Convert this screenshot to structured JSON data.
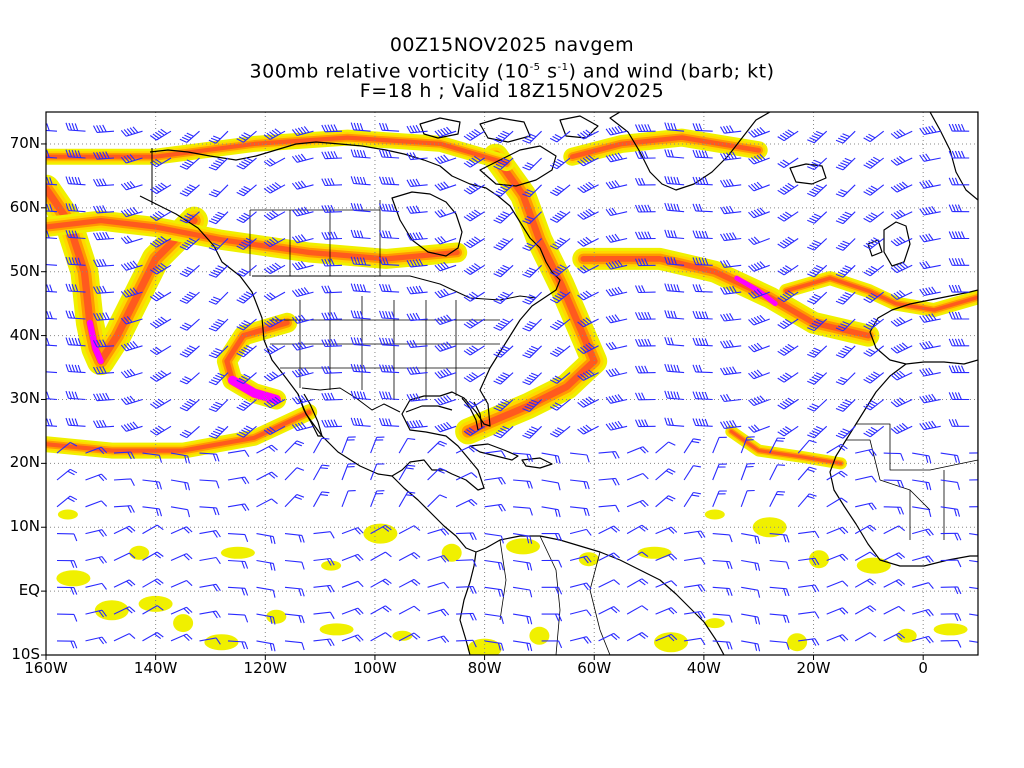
{
  "header": {
    "line1": "00Z15NOV2025 navgem",
    "line2_pre": "300mb relative vorticity (10",
    "line2_exp1": "-5",
    "line2_mid": " s",
    "line2_exp2": "-1",
    "line2_post": ") and wind (barb; kt)",
    "line3": "F=18 h ; Valid 18Z15NOV2025"
  },
  "map": {
    "lon_range": [
      -160,
      10
    ],
    "lat_range": [
      -10,
      75
    ],
    "lat_ticks": [
      {
        "value": 70,
        "label": "70N"
      },
      {
        "value": 60,
        "label": "60N"
      },
      {
        "value": 50,
        "label": "50N"
      },
      {
        "value": 40,
        "label": "40N"
      },
      {
        "value": 30,
        "label": "30N"
      },
      {
        "value": 20,
        "label": "20N"
      },
      {
        "value": 10,
        "label": "10N"
      },
      {
        "value": 0,
        "label": "EQ"
      },
      {
        "value": -10,
        "label": "10S"
      }
    ],
    "lon_ticks": [
      {
        "value": -160,
        "label": "160W"
      },
      {
        "value": -140,
        "label": "140W"
      },
      {
        "value": -120,
        "label": "120W"
      },
      {
        "value": -100,
        "label": "100W"
      },
      {
        "value": -80,
        "label": "80W"
      },
      {
        "value": -60,
        "label": "60W"
      },
      {
        "value": -40,
        "label": "40W"
      },
      {
        "value": -20,
        "label": "20W"
      },
      {
        "value": 0,
        "label": "0"
      }
    ],
    "colors": {
      "shade1": "#f0f000",
      "shade2": "#ffd700",
      "shade3": "#ff9a00",
      "shade4": "#ff5a1e",
      "shade5": "#ff00ff",
      "barb": "#2a2aff",
      "coast": "#000000",
      "grid": "#888888"
    },
    "vorticity_bands": [
      {
        "name": "alaska-gulf-trough",
        "pts": [
          [
            -160,
            63
          ],
          [
            -156,
            58
          ],
          [
            -153,
            50
          ],
          [
            -152,
            42
          ],
          [
            -151,
            38
          ],
          [
            -150,
            36
          ],
          [
            -147,
            40
          ],
          [
            -140,
            52
          ],
          [
            -133,
            58
          ]
        ],
        "w": 28
      },
      {
        "name": "california-cutoff",
        "pts": [
          [
            -116,
            42
          ],
          [
            -124,
            40
          ],
          [
            -127,
            36
          ],
          [
            -126,
            33
          ],
          [
            -122,
            31
          ],
          [
            -118,
            30
          ]
        ],
        "w": 20
      },
      {
        "name": "north-atlantic-jet",
        "pts": [
          [
            -62,
            52
          ],
          [
            -48,
            52
          ],
          [
            -38,
            50
          ],
          [
            -28,
            46
          ],
          [
            -20,
            42
          ],
          [
            -10,
            40
          ]
        ],
        "w": 22
      },
      {
        "name": "labrador-trough",
        "pts": [
          [
            -78,
            68
          ],
          [
            -73,
            62
          ],
          [
            -70,
            55
          ],
          [
            -66,
            48
          ],
          [
            -62,
            40
          ],
          [
            -60,
            36
          ],
          [
            -65,
            32
          ],
          [
            -72,
            29
          ],
          [
            -83,
            25
          ]
        ],
        "w": 26
      },
      {
        "name": "greenland-arc",
        "pts": [
          [
            -64,
            68
          ],
          [
            -55,
            70
          ],
          [
            -44,
            71
          ],
          [
            -30,
            69
          ]
        ],
        "w": 18
      },
      {
        "name": "arctic-band",
        "pts": [
          [
            -160,
            68
          ],
          [
            -140,
            68
          ],
          [
            -122,
            70
          ],
          [
            -105,
            71
          ],
          [
            -88,
            70
          ],
          [
            -76,
            67
          ]
        ],
        "w": 16
      },
      {
        "name": "north-pacific-band",
        "pts": [
          [
            -160,
            57
          ],
          [
            -150,
            58
          ],
          [
            -140,
            57
          ],
          [
            -128,
            55
          ],
          [
            -112,
            53
          ],
          [
            -98,
            52
          ],
          [
            -85,
            53
          ]
        ],
        "w": 20
      },
      {
        "name": "subtropical-pacific",
        "pts": [
          [
            -160,
            23
          ],
          [
            -148,
            22
          ],
          [
            -135,
            22
          ],
          [
            -122,
            24
          ],
          [
            -112,
            28
          ]
        ],
        "w": 16
      },
      {
        "name": "eastern-atlantic-cutoff",
        "pts": [
          [
            -35,
            25
          ],
          [
            -30,
            22
          ],
          [
            -22,
            21
          ],
          [
            -15,
            20
          ]
        ],
        "w": 12
      },
      {
        "name": "european-trough",
        "pts": [
          [
            -25,
            47
          ],
          [
            -17,
            49
          ],
          [
            -10,
            47
          ],
          [
            -5,
            45
          ],
          [
            2,
            44
          ],
          [
            10,
            46
          ]
        ],
        "w": 14
      }
    ],
    "tropical_blobs": [
      [
        -156,
        12
      ],
      [
        -148,
        -3
      ],
      [
        -135,
        -5
      ],
      [
        -128,
        -8
      ],
      [
        -118,
        -4
      ],
      [
        -107,
        -6
      ],
      [
        -95,
        -7
      ],
      [
        -80,
        -9
      ],
      [
        -70,
        -7
      ],
      [
        -155,
        2
      ],
      [
        -143,
        6
      ],
      [
        -125,
        6
      ],
      [
        -108,
        4
      ],
      [
        -99,
        9
      ],
      [
        -86,
        6
      ],
      [
        -73,
        7
      ],
      [
        -61,
        5
      ],
      [
        -49,
        6
      ],
      [
        -38,
        12
      ],
      [
        -28,
        10
      ],
      [
        -19,
        5
      ],
      [
        -9,
        4
      ],
      [
        -3,
        -7
      ],
      [
        5,
        -6
      ],
      [
        -38,
        -5
      ],
      [
        -46,
        -8
      ],
      [
        -23,
        -8
      ],
      [
        -140,
        -2
      ]
    ]
  }
}
